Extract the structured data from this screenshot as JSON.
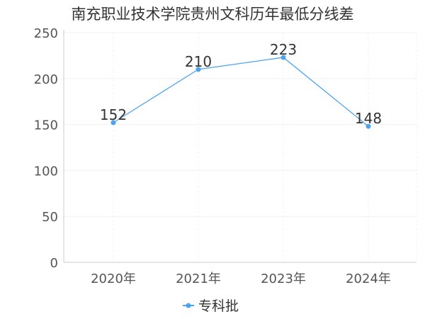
{
  "chart_data": {
    "type": "line",
    "title": "南充职业技术学院贵州文科历年最低分线差",
    "categories": [
      "2020年",
      "2021年",
      "2023年",
      "2024年"
    ],
    "series": [
      {
        "name": "专科批",
        "values": [
          152,
          210,
          223,
          148
        ],
        "color": "#4da3f0"
      }
    ],
    "ylim": [
      0,
      250
    ],
    "yticks": [
      0,
      50,
      100,
      150,
      200,
      250
    ],
    "grid": true,
    "legend": "bottom-center"
  }
}
